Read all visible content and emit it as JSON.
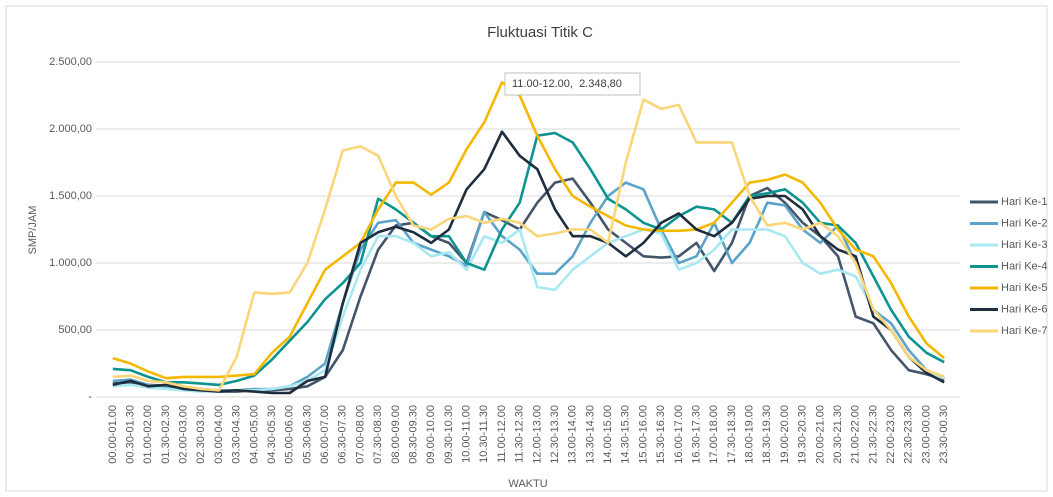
{
  "chart_data": {
    "type": "line",
    "title": "Fluktuasi Titik C",
    "x_label": "WAKTU",
    "y_label": "SMP/JAM",
    "annotation": "11.00-12.00,  2.348,80",
    "categories": [
      "00.00-01.00",
      "00.30-01.30",
      "01.00-02.00",
      "01.30-02.30",
      "02.00-03.00",
      "02.30-03.30",
      "03.00-04.00",
      "03.30-04.30",
      "04.00-05.00",
      "04.30-05.30",
      "05.00-06.00",
      "05.30-06.30",
      "06.00-07.00",
      "06.30-07.30",
      "07.00-08.00",
      "07.30-08.30",
      "08.00-09.00",
      "08.30-09.30",
      "09.00-10.00",
      "09.30-10.30",
      "10.00-11.00",
      "10.30-11.30",
      "11.00-12.00",
      "11.30-12.30",
      "12.00-13.00",
      "12.30-13.30",
      "13.00-14.00",
      "13.30-14.30",
      "14.00-15.00",
      "14.30-15.30",
      "15.00-16.00",
      "15.30-16.30",
      "16.00-17.00",
      "16.30-17.30",
      "17.00-18.00",
      "17.30-18.30",
      "18.00-19.00",
      "18.30-19.30",
      "19.00-20.00",
      "19.30-20.30",
      "20.00-21.00",
      "20.30-21.30",
      "21.00-22.00",
      "21.30-22.30",
      "22.00-23.00",
      "22.30-23.30",
      "23.00-00.00",
      "23.30-00.30"
    ],
    "ylim": [
      0,
      2500
    ],
    "yticks": [
      {
        "value": 0,
        "label": "-"
      },
      {
        "value": 500,
        "label": "500,00"
      },
      {
        "value": 1000,
        "label": "1.000,00"
      },
      {
        "value": 1500,
        "label": "1.500,00"
      },
      {
        "value": 2000,
        "label": "2.000,00"
      },
      {
        "value": 2500,
        "label": "2.500,00"
      }
    ],
    "grid": true,
    "legend": "right",
    "series": [
      {
        "name": "Hari Ke-1",
        "color": "#44546a",
        "values": [
          100,
          110,
          90,
          85,
          60,
          50,
          40,
          40,
          50,
          50,
          60,
          80,
          150,
          350,
          750,
          1100,
          1280,
          1300,
          1200,
          1150,
          1000,
          1380,
          1320,
          1250,
          1450,
          1600,
          1630,
          1450,
          1250,
          1150,
          1050,
          1040,
          1050,
          1150,
          940,
          1150,
          1500,
          1560,
          1450,
          1300,
          1200,
          1050,
          600,
          550,
          350,
          200,
          170,
          130
        ]
      },
      {
        "name": "Hari Ke-2",
        "color": "#5ba3c9",
        "values": [
          120,
          130,
          90,
          80,
          70,
          60,
          50,
          50,
          60,
          60,
          80,
          150,
          250,
          700,
          1100,
          1300,
          1320,
          1150,
          1100,
          1050,
          980,
          1380,
          1200,
          1100,
          920,
          920,
          1050,
          1300,
          1500,
          1600,
          1550,
          1250,
          1000,
          1050,
          1300,
          1000,
          1150,
          1450,
          1430,
          1250,
          1150,
          1280,
          1000,
          650,
          550,
          350,
          200,
          150
        ]
      },
      {
        "name": "Hari Ke-3",
        "color": "#a8e8f0",
        "values": [
          80,
          90,
          70,
          60,
          50,
          40,
          40,
          50,
          50,
          60,
          80,
          120,
          200,
          600,
          950,
          1200,
          1200,
          1150,
          1050,
          1080,
          950,
          1200,
          1150,
          1250,
          820,
          800,
          950,
          1050,
          1150,
          1200,
          1250,
          1220,
          950,
          1000,
          1100,
          1250,
          1250,
          1250,
          1200,
          1000,
          920,
          950,
          900,
          650,
          500,
          300,
          180,
          140
        ]
      },
      {
        "name": "Hari Ke-4",
        "color": "#0e9490",
        "values": [
          210,
          200,
          150,
          110,
          110,
          100,
          90,
          120,
          160,
          280,
          420,
          560,
          730,
          850,
          1000,
          1480,
          1400,
          1300,
          1200,
          1200,
          1000,
          950,
          1250,
          1450,
          1950,
          1970,
          1900,
          1700,
          1480,
          1400,
          1300,
          1250,
          1350,
          1420,
          1400,
          1300,
          1500,
          1520,
          1550,
          1450,
          1300,
          1280,
          1150,
          900,
          650,
          450,
          330,
          260
        ]
      },
      {
        "name": "Hari Ke-5",
        "color": "#f5b800",
        "values": [
          290,
          250,
          190,
          140,
          150,
          150,
          150,
          160,
          170,
          330,
          450,
          700,
          950,
          1050,
          1150,
          1400,
          1600,
          1600,
          1510,
          1600,
          1850,
          2050,
          2348.8,
          2250,
          1950,
          1700,
          1500,
          1420,
          1350,
          1280,
          1250,
          1240,
          1240,
          1250,
          1300,
          1450,
          1600,
          1620,
          1660,
          1600,
          1450,
          1250,
          1100,
          1050,
          850,
          600,
          400,
          290
        ]
      },
      {
        "name": "Hari Ke-6",
        "color": "#1f2d3d",
        "values": [
          90,
          120,
          80,
          90,
          60,
          50,
          40,
          50,
          40,
          30,
          30,
          120,
          150,
          700,
          1150,
          1230,
          1270,
          1230,
          1150,
          1250,
          1550,
          1700,
          1980,
          1800,
          1700,
          1400,
          1200,
          1200,
          1150,
          1050,
          1150,
          1300,
          1370,
          1250,
          1200,
          1300,
          1480,
          1500,
          1500,
          1400,
          1200,
          1100,
          1050,
          600,
          500,
          300,
          180,
          110
        ]
      },
      {
        "name": "Hari Ke-7",
        "color": "#fbd679",
        "values": [
          150,
          160,
          120,
          110,
          80,
          60,
          50,
          300,
          780,
          770,
          780,
          1000,
          1400,
          1840,
          1870,
          1800,
          1500,
          1280,
          1250,
          1330,
          1350,
          1300,
          1330,
          1300,
          1200,
          1220,
          1250,
          1250,
          1150,
          1750,
          2220,
          2150,
          2180,
          1900,
          1900,
          1900,
          1500,
          1280,
          1300,
          1250,
          1300,
          1200,
          1000,
          650,
          500,
          300,
          200,
          150
        ]
      }
    ]
  }
}
